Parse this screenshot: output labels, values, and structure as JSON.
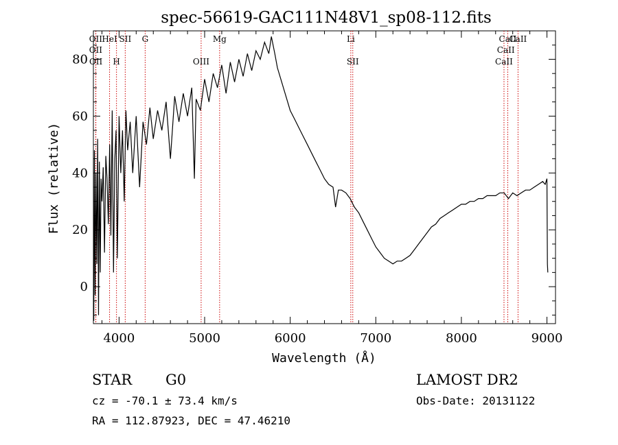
{
  "chart_data": {
    "type": "line",
    "title": "spec-56619-GAC111N48V1_sp08-112.fits",
    "xlabel": "Wavelength (Å)",
    "ylabel": "Flux (relative)",
    "xlim": [
      3700,
      9100
    ],
    "ylim": [
      -13,
      90
    ],
    "x_ticks": [
      4000,
      5000,
      6000,
      7000,
      8000,
      9000
    ],
    "y_ticks": [
      0,
      20,
      40,
      60,
      80
    ],
    "grid": false,
    "colors": {
      "spectrum": "#000000",
      "lines": "#cc0000",
      "text": "#000000"
    },
    "series": [
      {
        "x": [
          3705,
          3712,
          3720,
          3730,
          3740,
          3750,
          3760,
          3770,
          3780,
          3790,
          3800,
          3815,
          3830,
          3845,
          3860,
          3875,
          3890,
          3905,
          3920,
          3935,
          3950,
          3965,
          3980,
          4000,
          4020,
          4040,
          4060,
          4080,
          4100,
          4130,
          4160,
          4200,
          4240,
          4280,
          4320,
          4360,
          4400,
          4450,
          4500,
          4550,
          4600,
          4650,
          4700,
          4750,
          4800,
          4850,
          4880,
          4900,
          4950,
          5000,
          5050,
          5100,
          5150,
          5200,
          5250,
          5300,
          5350,
          5400,
          5450,
          5500,
          5550,
          5600,
          5650,
          5700,
          5750,
          5780,
          5800,
          5820,
          5850,
          5900,
          5950,
          6000,
          6050,
          6100,
          6150,
          6200,
          6250,
          6300,
          6350,
          6400,
          6450,
          6500,
          6530,
          6563,
          6600,
          6650,
          6700,
          6750,
          6800,
          6850,
          6900,
          6950,
          7000,
          7050,
          7100,
          7150,
          7200,
          7250,
          7300,
          7350,
          7400,
          7450,
          7500,
          7550,
          7600,
          7650,
          7700,
          7750,
          7800,
          7850,
          7900,
          7950,
          8000,
          8050,
          8100,
          8150,
          8200,
          8250,
          8300,
          8350,
          8400,
          8450,
          8500,
          8550,
          8600,
          8650,
          8700,
          8750,
          8800,
          8850,
          8900,
          8950,
          8980,
          9000,
          9005,
          9010
        ],
        "y": [
          -12,
          48,
          -3,
          40,
          8,
          52,
          -10,
          44,
          5,
          38,
          30,
          42,
          12,
          46,
          38,
          22,
          50,
          18,
          62,
          5,
          45,
          55,
          10,
          60,
          40,
          55,
          30,
          62,
          48,
          58,
          40,
          60,
          35,
          58,
          50,
          63,
          52,
          62,
          55,
          65,
          45,
          67,
          58,
          68,
          60,
          70,
          38,
          66,
          62,
          73,
          65,
          75,
          70,
          78,
          68,
          79,
          72,
          80,
          74,
          82,
          76,
          83,
          80,
          86,
          82,
          88,
          85,
          82,
          77,
          72,
          67,
          62,
          59,
          56,
          53,
          50,
          47,
          44,
          41,
          38,
          36,
          35,
          28,
          34,
          34,
          33,
          31,
          28,
          26,
          23,
          20,
          17,
          14,
          12,
          10,
          9,
          8,
          9,
          9,
          10,
          11,
          13,
          15,
          17,
          19,
          21,
          22,
          24,
          25,
          26,
          27,
          28,
          29,
          29,
          30,
          30,
          31,
          31,
          32,
          32,
          32,
          33,
          33,
          31,
          33,
          32,
          33,
          34,
          34,
          35,
          36,
          37,
          36,
          38,
          8,
          5
        ]
      }
    ],
    "line_markers_top": [
      {
        "x": 3727,
        "label": "OII"
      },
      {
        "x": 3889,
        "label": "HeI"
      },
      {
        "x": 4072,
        "label": "SII"
      },
      {
        "x": 4305,
        "label": "G"
      },
      {
        "x": 5175,
        "label": "Mg"
      },
      {
        "x": 6708,
        "label": "Li"
      },
      {
        "x": 8542,
        "label": "CaII"
      },
      {
        "x": 8662,
        "label": "CaII"
      }
    ],
    "line_markers_bottom": [
      {
        "x": 3729,
        "label": "OII"
      },
      {
        "x": 3970,
        "label": "H"
      },
      {
        "x": 4959,
        "label": "OIII"
      },
      {
        "x": 6731,
        "label": "SII"
      },
      {
        "x": 8498,
        "label": "CaII"
      }
    ],
    "footer": {
      "class": "STAR",
      "subclass": "G0",
      "survey": "LAMOST DR2",
      "cz": "cz = -70.1 ± 73.4 km/s",
      "obs_date": "Obs-Date: 20131122",
      "coords": "RA = 112.87923, DEC =  47.46210"
    }
  }
}
